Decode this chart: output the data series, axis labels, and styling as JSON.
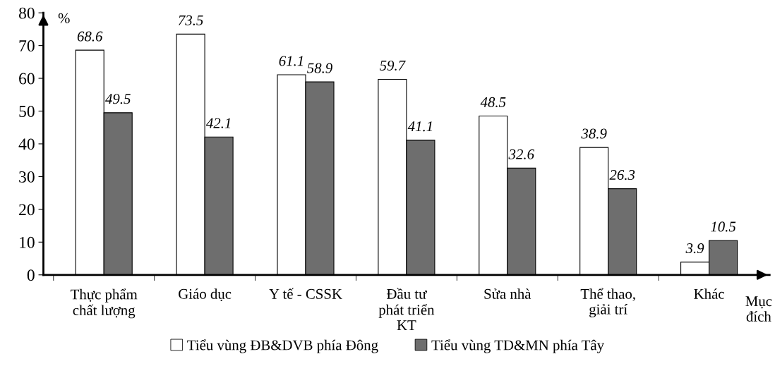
{
  "chart_data": {
    "type": "bar",
    "ylabel": "%",
    "xlabel": "Mục đích",
    "categories": [
      "Thực phẩm\nchất lượng",
      "Giáo dục",
      "Y tế - CSSK",
      "Đầu tư\nphát triển\nKT",
      "Sửa nhà",
      "Thể thao,\ngiải trí",
      "Khác"
    ],
    "series": [
      {
        "name": "Tiểu vùng ĐB&DVB phía Đông",
        "color": "#ffffff",
        "values": [
          68.6,
          73.5,
          61.1,
          59.7,
          48.5,
          38.9,
          3.9
        ]
      },
      {
        "name": "Tiểu vùng TD&MN phía Tây",
        "color": "#6e6e6e",
        "values": [
          49.5,
          42.1,
          58.9,
          41.1,
          32.6,
          26.3,
          10.5
        ]
      }
    ],
    "ylim": [
      0,
      80
    ],
    "yticks": [
      0,
      10,
      20,
      30,
      40,
      50,
      60,
      70,
      80
    ],
    "data_labels": true,
    "grid": false,
    "legend": "bottom"
  }
}
